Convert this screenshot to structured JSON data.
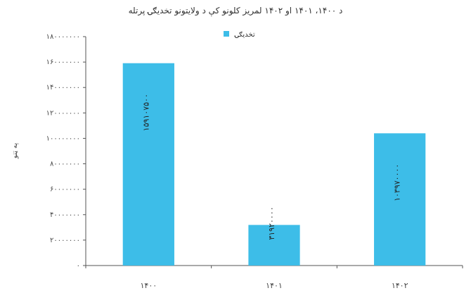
{
  "chart_data": {
    "type": "bar",
    "title": "د ۱۴۰۰، ۱۴۰۱ او ۱۴۰۲ لمریز کلونو کې د ولایتونو تخدیګۍ پرتله",
    "ylabel": "په ټنو",
    "xlabel": "",
    "categories": [
      "۱۴۰۰",
      "۱۴۰۱",
      "۱۴۰۲"
    ],
    "series": [
      {
        "name": "تخدیګۍ",
        "values": [
          159107500,
          31920000,
          103970000
        ],
        "data_labels": [
          "۱۵۹۱۰۷۵۰۰",
          "۳۱۹۲۰۰۰۰",
          "۱۰۳۹۷۰۰۰۰"
        ]
      }
    ],
    "ylim": [
      0,
      180000000
    ],
    "yticks": [
      0,
      20000000,
      40000000,
      60000000,
      80000000,
      100000000,
      120000000,
      140000000,
      160000000,
      180000000
    ],
    "ytick_labels": [
      "۰",
      "۲۰۰۰۰۰۰۰",
      "۴۰۰۰۰۰۰۰",
      "۶۰۰۰۰۰۰۰",
      "۸۰۰۰۰۰۰۰",
      "۱۰۰۰۰۰۰۰۰",
      "۱۲۰۰۰۰۰۰۰",
      "۱۴۰۰۰۰۰۰۰",
      "۱۶۰۰۰۰۰۰۰",
      "۱۸۰۰۰۰۰۰۰"
    ],
    "grid": false,
    "legend": "top-center",
    "colors": {
      "bar": "#3dbde8",
      "axis": "#555555"
    }
  }
}
